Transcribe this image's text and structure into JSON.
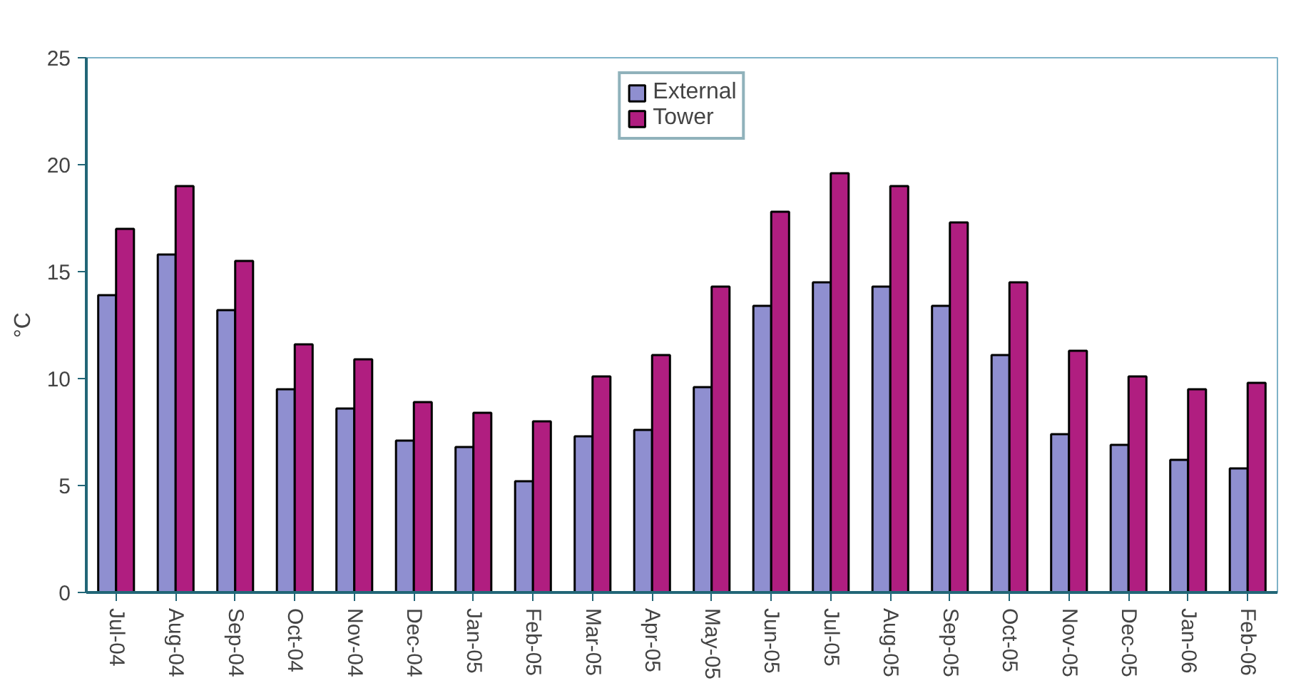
{
  "chart_data": {
    "type": "bar",
    "ylabel": "°C",
    "categories": [
      "Jul-04",
      "Aug-04",
      "Sep-04",
      "Oct-04",
      "Nov-04",
      "Dec-04",
      "Jan-05",
      "Feb-05",
      "Mar-05",
      "Apr-05",
      "May-05",
      "Jun-05",
      "Jul-05",
      "Aug-05",
      "Sep-05",
      "Oct-05",
      "Nov-05",
      "Dec-05",
      "Jan-06",
      "Feb-06"
    ],
    "series": [
      {
        "name": "External",
        "color": "#8f8fd0",
        "values": [
          13.9,
          15.8,
          13.2,
          9.5,
          8.6,
          7.1,
          6.8,
          5.2,
          7.3,
          7.6,
          9.6,
          13.4,
          14.5,
          14.3,
          13.4,
          11.1,
          7.4,
          6.9,
          6.2,
          5.8
        ]
      },
      {
        "name": "Tower",
        "color": "#b01e80",
        "values": [
          17.0,
          19.0,
          15.5,
          11.6,
          10.9,
          8.9,
          8.4,
          8.0,
          10.1,
          11.1,
          14.3,
          17.8,
          19.6,
          19.0,
          17.3,
          14.5,
          11.3,
          10.1,
          9.5,
          9.8
        ]
      }
    ],
    "ylim": [
      0,
      25
    ],
    "yticks": [
      0,
      5,
      10,
      15,
      20,
      25
    ],
    "grid": false,
    "legend": "top"
  }
}
